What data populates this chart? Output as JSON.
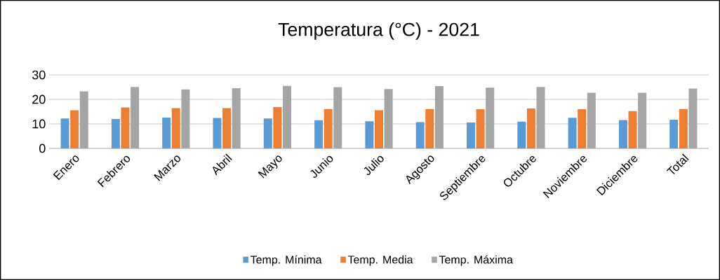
{
  "chart_data": {
    "type": "bar",
    "title": "Temperatura (°C) - 2021",
    "categories": [
      "Enero",
      "Febrero",
      "Marzo",
      "Abril",
      "Mayo",
      "Junio",
      "Julio",
      "Agosto",
      "Septiembre",
      "Octubre",
      "Noviembre",
      "Diciembre",
      "Total"
    ],
    "series": [
      {
        "name": "Temp. Mínima",
        "color": "#5b9bd5",
        "values": [
          12.2,
          12.0,
          12.6,
          12.4,
          12.2,
          11.5,
          11.1,
          10.7,
          10.6,
          10.9,
          12.5,
          11.6,
          11.7
        ]
      },
      {
        "name": "Temp. Media",
        "color": "#ed7d31",
        "values": [
          15.6,
          16.7,
          16.4,
          16.4,
          16.9,
          16.1,
          15.6,
          16.1,
          16.0,
          16.3,
          16.0,
          15.2,
          16.1
        ]
      },
      {
        "name": "Temp. Máxima",
        "color": "#a5a5a5",
        "values": [
          23.3,
          25.1,
          24.1,
          24.6,
          25.5,
          25.0,
          24.2,
          25.4,
          24.8,
          25.1,
          22.7,
          22.7,
          24.4
        ]
      }
    ],
    "ylim": [
      0,
      30
    ],
    "yticks": [
      0,
      10,
      20,
      30
    ],
    "grid": "y",
    "legend": "bottom"
  }
}
